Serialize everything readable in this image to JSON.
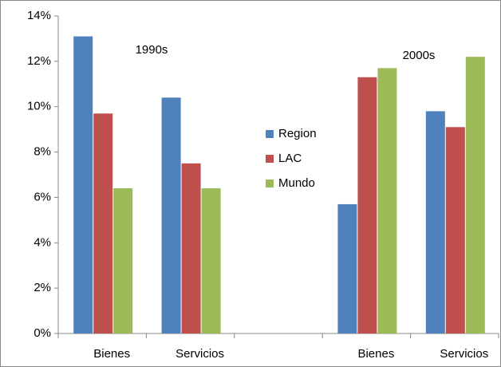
{
  "chart_data": {
    "type": "bar",
    "categories": [
      "Bienes",
      "Servicios",
      null,
      "Bienes",
      "Servicios"
    ],
    "series": [
      {
        "name": "Region",
        "color": "#4f81bd",
        "values": [
          13.1,
          10.4,
          null,
          5.7,
          9.8
        ]
      },
      {
        "name": "LAC",
        "color": "#c0504d",
        "values": [
          9.7,
          7.5,
          null,
          11.3,
          9.1
        ]
      },
      {
        "name": "Mundo",
        "color": "#9bbb59",
        "values": [
          6.4,
          6.4,
          null,
          11.7,
          12.2
        ]
      }
    ],
    "annotations": [
      "1990s",
      "2000s"
    ],
    "ylim": [
      0,
      14
    ],
    "yticks": [
      {
        "value": 0,
        "label": "0%"
      },
      {
        "value": 2,
        "label": "2%"
      },
      {
        "value": 4,
        "label": "4%"
      },
      {
        "value": 6,
        "label": "6%"
      },
      {
        "value": 8,
        "label": "8%"
      },
      {
        "value": 10,
        "label": "10%"
      },
      {
        "value": 12,
        "label": "12%"
      },
      {
        "value": 14,
        "label": "14%"
      }
    ],
    "grid": false,
    "legend": "center"
  }
}
